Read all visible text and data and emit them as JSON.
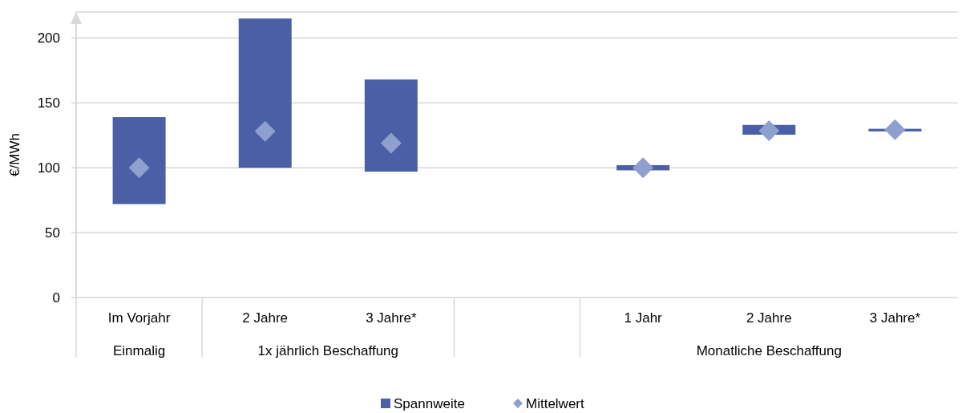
{
  "chart_data": {
    "type": "bar",
    "ylabel": "€/MWh",
    "categories": [
      "Im Vorjahr",
      "2 Jahre",
      "3 Jahre*",
      null,
      "1 Jahr",
      "2 Jahre",
      "3 Jahre*"
    ],
    "series": [
      {
        "name": "Spannweite",
        "color": "#4a5fa5",
        "base": [
          72,
          100,
          97,
          null,
          98,
          125.5,
          128
        ],
        "values": [
          67,
          115,
          71,
          null,
          4,
          7.5,
          2
        ]
      },
      {
        "name": "Mittelwert",
        "type": "scatter",
        "color": "#8fa0cf",
        "marker": "diamond",
        "values": [
          100,
          128,
          119,
          null,
          100,
          128.5,
          129.3
        ]
      }
    ],
    "annotations": [
      "Einmalig",
      "1x jährlich Beschaffung",
      "Monatliche Beschaffung"
    ],
    "ylim": [
      0,
      220
    ],
    "yticks": [
      0,
      50,
      100,
      150,
      200
    ],
    "grid": "y",
    "legend": "bottom"
  }
}
